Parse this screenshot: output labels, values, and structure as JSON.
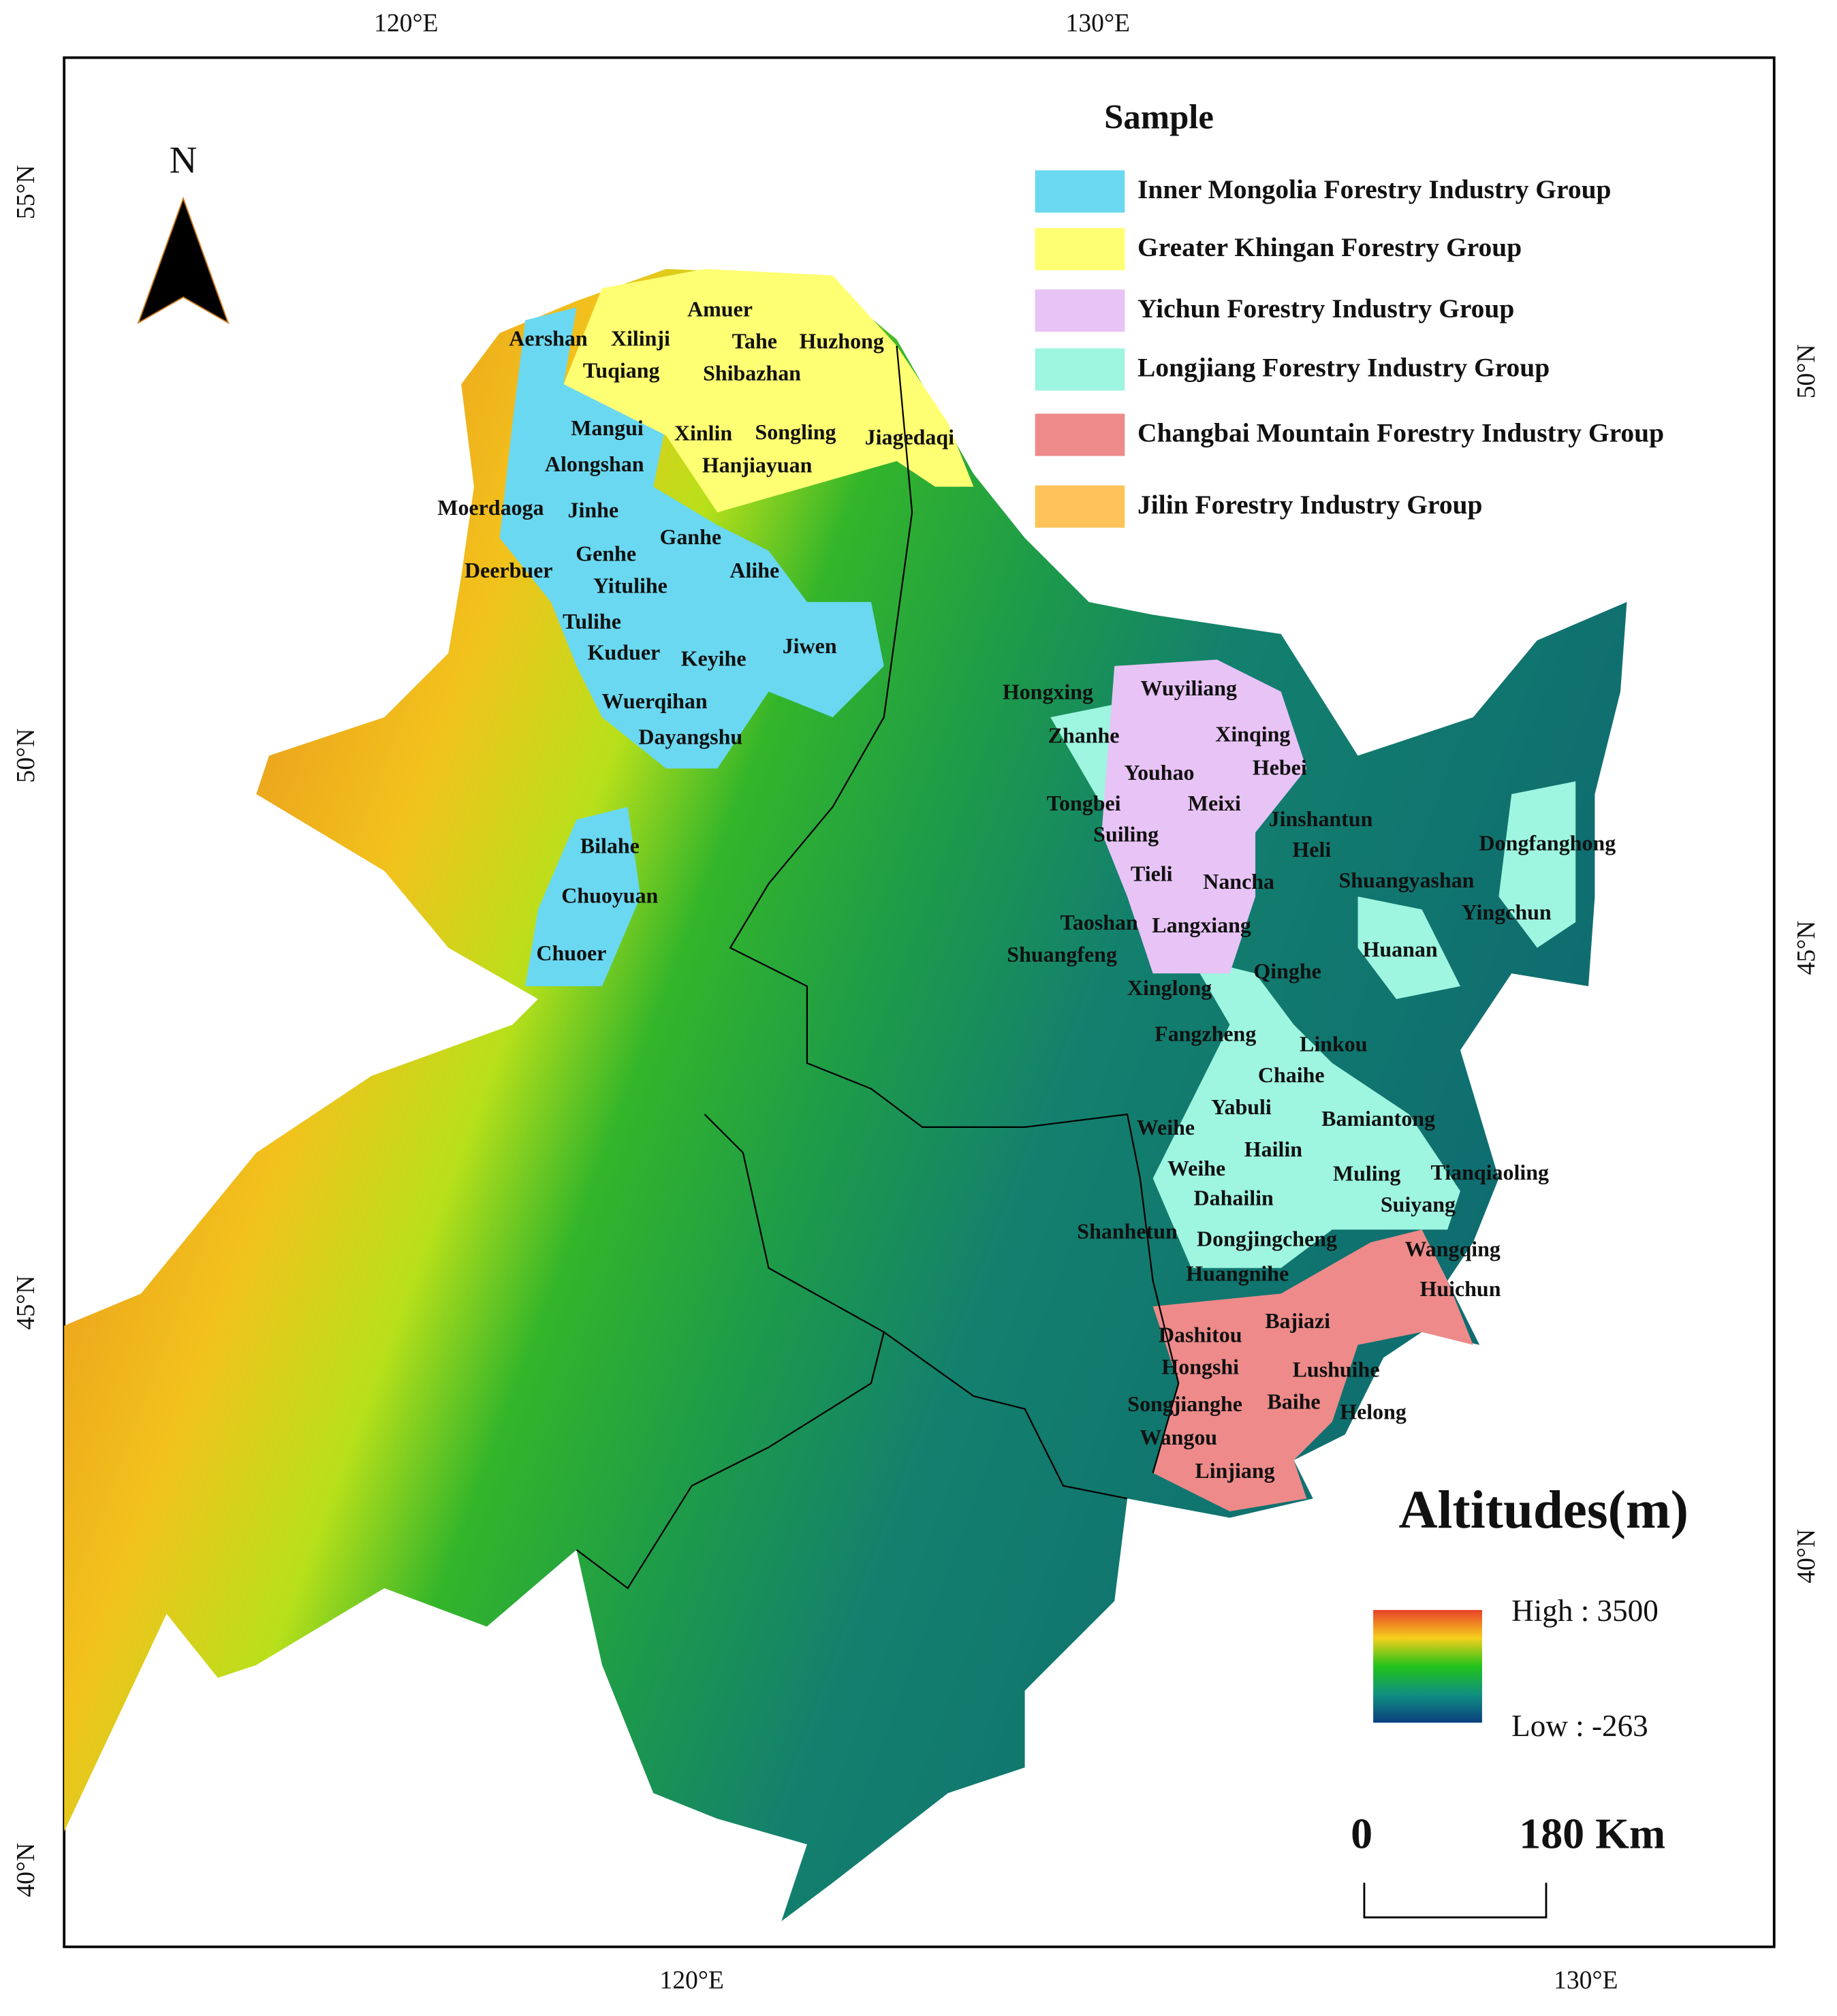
{
  "north_arrow": "N",
  "graticule": {
    "top": [
      "120°E",
      "130°E"
    ],
    "bottom": [
      "120°E",
      "130°E"
    ],
    "left": [
      "55°N",
      "50°N",
      "45°N",
      "40°N"
    ],
    "right": [
      "50°N",
      "45°N",
      "40°N"
    ]
  },
  "legend": {
    "title": "Sample",
    "items": [
      {
        "label": "Inner Mongolia Forestry Industry Group",
        "color": "#6ad8f0"
      },
      {
        "label": "Greater Khingan Forestry Group",
        "color": "#ffff73"
      },
      {
        "label": "Yichun Forestry Industry Group",
        "color": "#e8c3f5"
      },
      {
        "label": "Longjiang Forestry Industry Group",
        "color": "#9ef5e0"
      },
      {
        "label": "Changbai Mountain Forestry Industry Group",
        "color": "#ee8a8a"
      },
      {
        "label": "Jilin Forestry Industry Group",
        "color": "#ffc35a"
      }
    ]
  },
  "places": [
    "Aershan",
    "Xilinji",
    "Amuer",
    "Tahe",
    "Huzhong",
    "Tuqiang",
    "Shibazhan",
    "Mangui",
    "Xinlin",
    "Songling",
    "Jiagedaqi",
    "Alongshan",
    "Hanjiayuan",
    "Moerdaoga",
    "Jinhe",
    "Ganhe",
    "Genhe",
    "Deerbuer",
    "Alihe",
    "Yitulihe",
    "Tulihe",
    "Jiwen",
    "Kuduer",
    "Keyihe",
    "Wuerqihan",
    "Dayangshu",
    "Bilahe",
    "Chuoyuan",
    "Chuoer",
    "Hongxing",
    "Wuyiliang",
    "Zhanhe",
    "Xinqing",
    "Youhao",
    "Hebei",
    "Tongbei",
    "Meixi",
    "Jinshantun",
    "Suiling",
    "Heli",
    "Dongfanghong",
    "Tieli",
    "Nancha",
    "Shuangyashan",
    "Yingchun",
    "Taoshan",
    "Langxiang",
    "Shuangfeng",
    "Huanan",
    "Qinghe",
    "Xinglong",
    "Fangzheng",
    "Linkou",
    "Chaihe",
    "Yabuli",
    "Bamiantong",
    "Weihe",
    "Hailin",
    "Weihe",
    "Muling",
    "Tianqiaoling",
    "Dahailin",
    "Suiyang",
    "Shanhetun",
    "Dongjingcheng",
    "Wangqing",
    "Huangnihe",
    "Huichun",
    "Bajiazi",
    "Dashitou",
    "Hongshi",
    "Lushuihe",
    "Songjianghe",
    "Baihe",
    "Helong",
    "Wangou",
    "Linjiang"
  ],
  "elevation_legend": {
    "title": "Altitudes(m)",
    "high": "High : 3500",
    "low": "Low : -263"
  },
  "scale_bar": {
    "start": "0",
    "end": "180 Km"
  }
}
